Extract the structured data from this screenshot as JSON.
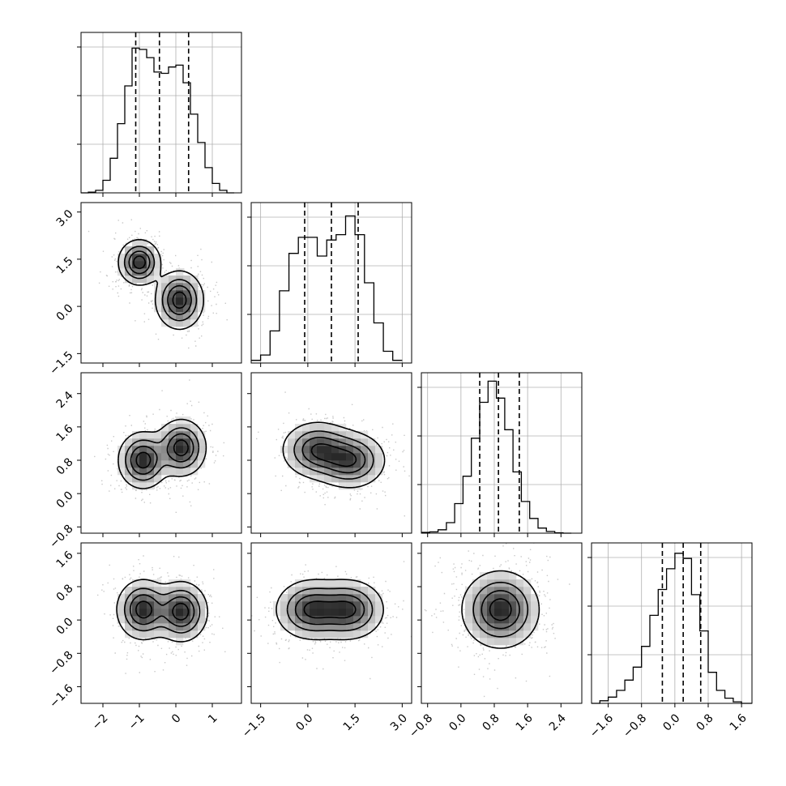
{
  "chart_data": {
    "type": "corner",
    "variables": 4,
    "grid": true,
    "axes": {
      "0": {
        "lim": [
          -2.6,
          1.8
        ],
        "ticks": [
          -2,
          -1,
          0,
          1
        ],
        "tick_labels": [
          "−2",
          "−1",
          "0",
          "1"
        ]
      },
      "1": {
        "lim": [
          -1.8,
          3.3
        ],
        "ticks": [
          -1.5,
          0.0,
          1.5,
          3.0
        ],
        "tick_labels": [
          "−1.5",
          "0.0",
          "1.5",
          "3.0"
        ]
      },
      "2": {
        "lim": [
          -0.95,
          2.9
        ],
        "ticks": [
          -0.8,
          0.0,
          0.8,
          1.6,
          2.4
        ],
        "tick_labels": [
          "−0.8",
          "0.0",
          "0.8",
          "1.6",
          "2.4"
        ]
      },
      "3": {
        "lim": [
          -2.0,
          1.85
        ],
        "ticks": [
          -1.6,
          -0.8,
          0.0,
          0.8,
          1.6
        ],
        "tick_labels": [
          "−1.6",
          "−0.8",
          "0.0",
          "0.8",
          "1.6"
        ]
      }
    },
    "histograms": [
      {
        "bins": [
          -2.6,
          -2.4,
          -2.2,
          -2.0,
          -1.8,
          -1.6,
          -1.4,
          -1.2,
          -1.0,
          -0.8,
          -0.6,
          -0.4,
          -0.2,
          0.0,
          0.2,
          0.4,
          0.6,
          0.8,
          1.0,
          1.2,
          1.4,
          1.6
        ],
        "counts": [
          0,
          1,
          4,
          20,
          55,
          110,
          170,
          230,
          228,
          215,
          192,
          190,
          200,
          203,
          175,
          125,
          80,
          40,
          15,
          4,
          0
        ],
        "ymax": 255,
        "quantiles": [
          -1.1,
          -0.45,
          0.35
        ]
      },
      {
        "bins": [
          -1.8,
          -1.5,
          -1.2,
          -0.9,
          -0.6,
          -0.3,
          0.0,
          0.3,
          0.6,
          0.9,
          1.2,
          1.5,
          1.8,
          2.1,
          2.4,
          2.7,
          3.0
        ],
        "counts": [
          5,
          15,
          60,
          135,
          205,
          235,
          235,
          200,
          230,
          240,
          275,
          240,
          150,
          75,
          22,
          5
        ],
        "ymax": 300,
        "quantiles": [
          -0.1,
          0.75,
          1.6
        ]
      },
      {
        "bins": [
          -0.95,
          -0.75,
          -0.55,
          -0.35,
          -0.15,
          0.05,
          0.25,
          0.45,
          0.65,
          0.85,
          1.05,
          1.25,
          1.45,
          1.65,
          1.85,
          2.05,
          2.25,
          2.45,
          2.65
        ],
        "counts": [
          2,
          3,
          8,
          25,
          70,
          135,
          225,
          310,
          360,
          320,
          245,
          145,
          75,
          35,
          12,
          4,
          1,
          0
        ],
        "ymax": 380,
        "quantiles": [
          0.45,
          0.9,
          1.4
        ]
      },
      {
        "bins": [
          -2.0,
          -1.8,
          -1.6,
          -1.4,
          -1.2,
          -1.0,
          -0.8,
          -0.6,
          -0.4,
          -0.2,
          0.0,
          0.2,
          0.4,
          0.6,
          0.8,
          1.0,
          1.2,
          1.4,
          1.6,
          1.85
        ],
        "counts": [
          0,
          5,
          12,
          25,
          45,
          70,
          110,
          170,
          220,
          260,
          290,
          280,
          210,
          140,
          60,
          25,
          10,
          3,
          0
        ],
        "ymax": 310,
        "quantiles": [
          -0.3,
          0.2,
          0.62
        ]
      }
    ],
    "pairs": [
      {
        "x": 0,
        "y": 1,
        "modes": [
          [
            -1.0,
            1.4,
            0.28,
            0.35
          ],
          [
            0.1,
            0.2,
            0.32,
            0.45
          ]
        ],
        "mode_rot": [
          0,
          0
        ]
      },
      {
        "x": 0,
        "y": 2,
        "modes": [
          [
            -0.9,
            0.8,
            0.33,
            0.33
          ],
          [
            0.15,
            1.1,
            0.33,
            0.33
          ]
        ],
        "mode_rot": [
          0,
          0
        ]
      },
      {
        "x": 1,
        "y": 2,
        "modes": [
          [
            0.3,
            1.05,
            0.55,
            0.33
          ],
          [
            1.35,
            0.8,
            0.55,
            0.33
          ]
        ],
        "mode_rot": [
          0,
          0
        ]
      },
      {
        "x": 0,
        "y": 3,
        "modes": [
          [
            -0.9,
            0.25,
            0.35,
            0.35
          ],
          [
            0.15,
            0.2,
            0.35,
            0.35
          ]
        ],
        "mode_rot": [
          0,
          0
        ]
      },
      {
        "x": 1,
        "y": 3,
        "modes": [
          [
            0.1,
            0.25,
            0.55,
            0.35
          ],
          [
            1.3,
            0.25,
            0.55,
            0.35
          ]
        ],
        "mode_rot": [
          0,
          0
        ]
      },
      {
        "x": 2,
        "y": 3,
        "modes": [
          [
            0.95,
            0.25,
            0.45,
            0.45
          ]
        ],
        "mode_rot": [
          0
        ]
      }
    ]
  }
}
